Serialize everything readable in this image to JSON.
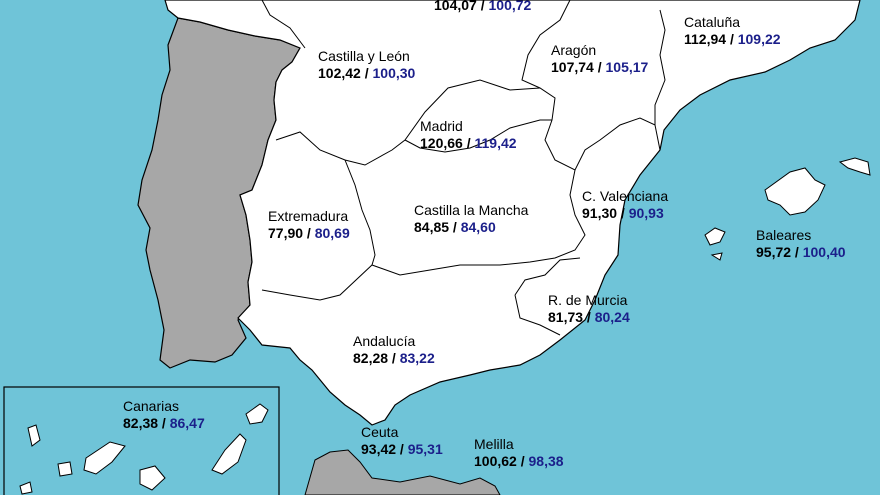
{
  "colors": {
    "sea": "#6fc4d8",
    "spain": "#ffffff",
    "portugal": "#a7a7a7",
    "border": "#000000",
    "value_2": "#1b1f8a"
  },
  "regions": {
    "north_partial": {
      "v1": "104,07",
      "v2": "100,72"
    },
    "cataluna": {
      "name": "Cataluña",
      "v1": "112,94",
      "v2": "109,22"
    },
    "castilla_leon": {
      "name": "Castilla y León",
      "v1": "102,42",
      "v2": "100,30"
    },
    "aragon": {
      "name": "Aragón",
      "v1": "107,74",
      "v2": "105,17"
    },
    "madrid": {
      "name": "Madrid",
      "v1": "120,66",
      "v2": "119,42"
    },
    "c_valenciana": {
      "name": "C. Valenciana",
      "v1": "91,30",
      "v2": "90,93"
    },
    "extremadura": {
      "name": "Extremadura",
      "v1": "77,90",
      "v2": "80,69"
    },
    "castilla_la_mancha": {
      "name": "Castilla la Mancha",
      "v1": "84,85",
      "v2": "84,60"
    },
    "baleares": {
      "name": "Baleares",
      "v1": "95,72",
      "v2": "100,40"
    },
    "murcia": {
      "name": "R. de Murcia",
      "v1": "81,73",
      "v2": "80,24"
    },
    "andalucia": {
      "name": "Andalucía",
      "v1": "82,28",
      "v2": "83,22"
    },
    "canarias": {
      "name": "Canarias",
      "v1": "82,38",
      "v2": "86,47"
    },
    "ceuta": {
      "name": "Ceuta",
      "v1": "93,42",
      "v2": "95,31"
    },
    "melilla": {
      "name": "Melilla",
      "v1": "100,62",
      "v2": "98,38"
    }
  },
  "separator": " / "
}
